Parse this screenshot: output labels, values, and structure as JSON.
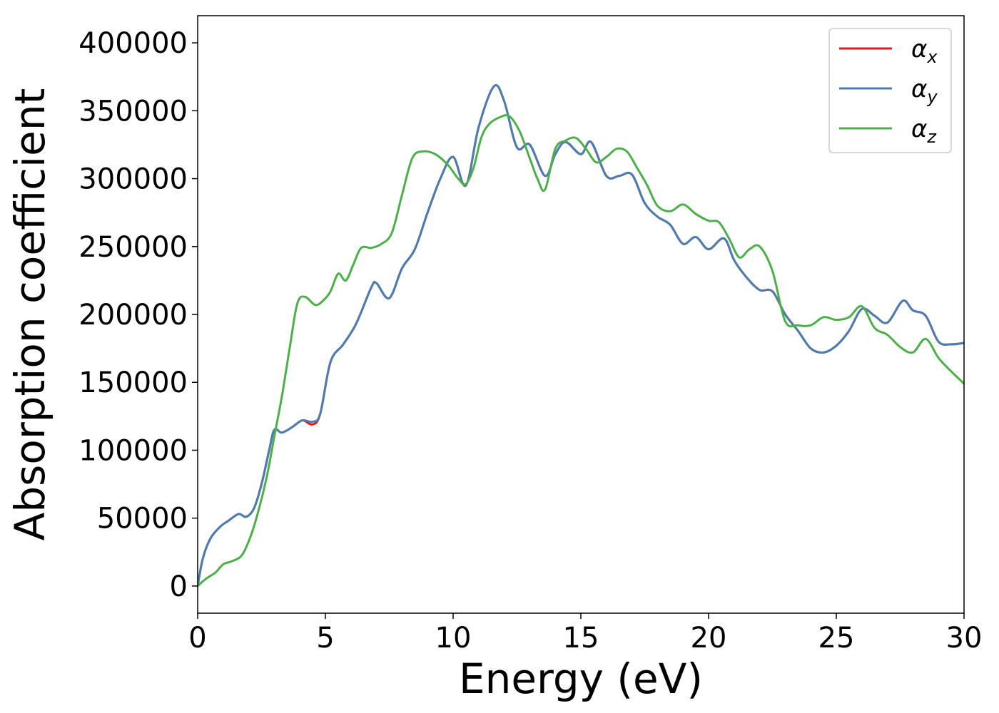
{
  "chart_data": {
    "type": "line",
    "title": "",
    "xlabel": "Energy (eV)",
    "ylabel": "Absorption coefficient",
    "xlim": [
      0,
      30
    ],
    "ylim": [
      -20000,
      420000
    ],
    "xticks": [
      0,
      5,
      10,
      15,
      20,
      25,
      30
    ],
    "yticks": [
      0,
      50000,
      100000,
      150000,
      200000,
      250000,
      300000,
      350000,
      400000
    ],
    "grid": false,
    "legend_position": "top-right",
    "series": [
      {
        "name": "α_x",
        "label_base": "α",
        "label_sub": "x",
        "color": "#e41a1c",
        "x": [
          0,
          0.2,
          0.5,
          0.9,
          1.2,
          1.6,
          1.9,
          2.2,
          2.5,
          2.8,
          3.0,
          3.3,
          3.7,
          4.1,
          4.5,
          4.8,
          5.2,
          5.7,
          6.2,
          6.8,
          7.0,
          7.5,
          8.0,
          8.5,
          9.0,
          9.5,
          10.0,
          10.5,
          11.0,
          11.6,
          12.0,
          12.5,
          13.0,
          13.6,
          14.0,
          14.4,
          15.0,
          15.4,
          16.0,
          16.5,
          17.0,
          17.5,
          18.0,
          18.5,
          19.0,
          19.5,
          20.0,
          20.6,
          21.0,
          21.5,
          22.0,
          22.5,
          23.0,
          23.5,
          24.0,
          24.5,
          25.0,
          25.5,
          26.0,
          26.5,
          27.0,
          27.6,
          28.0,
          28.5,
          29.0,
          29.5,
          30.0
        ],
        "y": [
          0,
          20000,
          35000,
          44000,
          48000,
          53000,
          51000,
          57000,
          75000,
          100000,
          115000,
          113000,
          117000,
          122000,
          119000,
          127000,
          165000,
          178000,
          193000,
          220000,
          223000,
          212000,
          234000,
          248000,
          275000,
          300000,
          316000,
          295000,
          338000,
          368000,
          357000,
          323000,
          325000,
          302000,
          318000,
          327000,
          318000,
          327000,
          302000,
          302000,
          303000,
          282000,
          272000,
          266000,
          252000,
          257000,
          248000,
          256000,
          240000,
          227000,
          218000,
          217000,
          200000,
          188000,
          175000,
          172000,
          177000,
          188000,
          204000,
          199000,
          194000,
          210000,
          203000,
          199000,
          180000,
          178000,
          179000
        ]
      },
      {
        "name": "α_y",
        "label_base": "α",
        "label_sub": "y",
        "color": "#4a7eb0",
        "x": [
          0,
          0.2,
          0.5,
          0.9,
          1.2,
          1.6,
          1.9,
          2.2,
          2.5,
          2.8,
          3.0,
          3.3,
          3.7,
          4.1,
          4.5,
          4.8,
          5.2,
          5.7,
          6.2,
          6.8,
          7.0,
          7.5,
          8.0,
          8.5,
          9.0,
          9.5,
          10.0,
          10.5,
          11.0,
          11.6,
          12.0,
          12.5,
          13.0,
          13.6,
          14.0,
          14.4,
          15.0,
          15.4,
          16.0,
          16.5,
          17.0,
          17.5,
          18.0,
          18.5,
          19.0,
          19.5,
          20.0,
          20.6,
          21.0,
          21.5,
          22.0,
          22.5,
          23.0,
          23.5,
          24.0,
          24.5,
          25.0,
          25.5,
          26.0,
          26.5,
          27.0,
          27.6,
          28.0,
          28.5,
          29.0,
          29.5,
          30.0
        ],
        "y": [
          0,
          20000,
          35000,
          44000,
          48000,
          53000,
          51000,
          57000,
          75000,
          100000,
          115000,
          113000,
          117000,
          122000,
          121000,
          127000,
          165000,
          178000,
          193000,
          220000,
          223000,
          212000,
          234000,
          248000,
          275000,
          300000,
          316000,
          295000,
          338000,
          368000,
          357000,
          323000,
          325000,
          302000,
          318000,
          327000,
          318000,
          327000,
          302000,
          302000,
          303000,
          282000,
          272000,
          266000,
          252000,
          257000,
          248000,
          256000,
          240000,
          227000,
          218000,
          217000,
          200000,
          188000,
          175000,
          172000,
          177000,
          188000,
          204000,
          199000,
          194000,
          210000,
          203000,
          199000,
          180000,
          178000,
          179000
        ]
      },
      {
        "name": "α_z",
        "label_base": "α",
        "label_sub": "z",
        "color": "#4daf4a",
        "x": [
          0,
          0.3,
          0.7,
          1.0,
          1.3,
          1.7,
          2.0,
          2.3,
          2.7,
          3.0,
          3.3,
          3.6,
          3.9,
          4.2,
          4.6,
          4.9,
          5.2,
          5.5,
          5.8,
          6.1,
          6.4,
          6.8,
          7.2,
          7.6,
          8.0,
          8.4,
          8.8,
          9.3,
          9.8,
          10.2,
          10.5,
          10.8,
          11.1,
          11.4,
          11.8,
          12.2,
          12.6,
          13.0,
          13.3,
          13.6,
          14.0,
          14.4,
          14.8,
          15.2,
          15.6,
          16.0,
          16.4,
          16.8,
          17.2,
          17.6,
          18.0,
          18.5,
          19.0,
          19.5,
          20.0,
          20.4,
          20.8,
          21.2,
          21.6,
          22.0,
          22.5,
          23.0,
          23.5,
          24.0,
          24.5,
          25.0,
          25.5,
          26.0,
          26.5,
          27.0,
          27.5,
          28.0,
          28.5,
          29.0,
          29.5,
          30.0
        ],
        "y": [
          0,
          5000,
          10000,
          16000,
          18000,
          22000,
          33000,
          50000,
          80000,
          110000,
          140000,
          175000,
          208000,
          213000,
          207000,
          210000,
          217000,
          230000,
          225000,
          237000,
          249000,
          249000,
          252000,
          260000,
          288000,
          315000,
          320000,
          318000,
          310000,
          300000,
          296000,
          308000,
          330000,
          340000,
          345000,
          346000,
          335000,
          315000,
          300000,
          292000,
          322000,
          328000,
          330000,
          322000,
          312000,
          316000,
          322000,
          320000,
          308000,
          295000,
          280000,
          276000,
          281000,
          274000,
          269000,
          268000,
          256000,
          242000,
          248000,
          250000,
          232000,
          195000,
          192000,
          192000,
          198000,
          196000,
          198000,
          206000,
          190000,
          185000,
          176000,
          172000,
          182000,
          168000,
          158000,
          149000
        ]
      }
    ]
  }
}
